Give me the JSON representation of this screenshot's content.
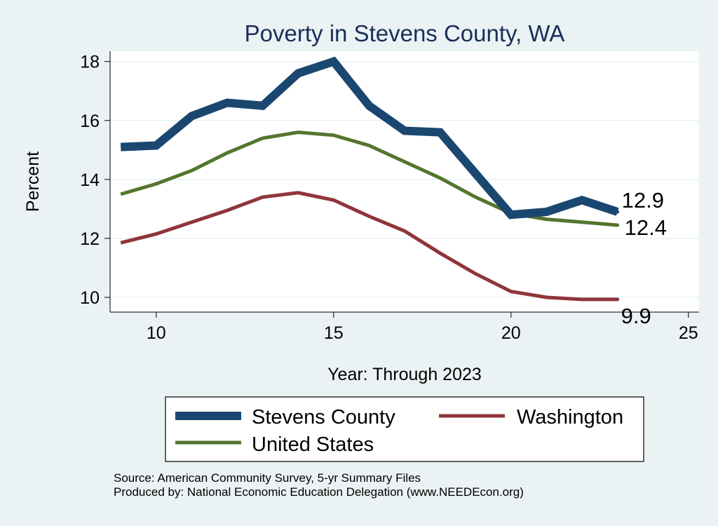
{
  "chart_data": {
    "type": "line",
    "title": "Poverty in Stevens County, WA",
    "xlabel": "Year: Through 2023",
    "ylabel": "Percent",
    "xlim": [
      8.7,
      25.3
    ],
    "ylim": [
      9.5,
      18.35
    ],
    "xticks": [
      10,
      15,
      20,
      25
    ],
    "yticks": [
      10,
      12,
      14,
      16,
      18
    ],
    "grid": true,
    "legend_position": "bottom",
    "x": [
      9,
      10,
      11,
      12,
      13,
      14,
      15,
      16,
      17,
      18,
      19,
      20,
      21,
      22,
      23
    ],
    "series": [
      {
        "name": "Stevens County",
        "color": "#1a476f",
        "values": [
          15.1,
          15.15,
          16.15,
          16.6,
          16.5,
          17.6,
          18.0,
          16.5,
          15.65,
          15.6,
          14.2,
          12.8,
          12.9,
          13.3,
          12.9
        ],
        "end_label": "12.9"
      },
      {
        "name": "United States",
        "color": "#55752f",
        "values": [
          13.5,
          13.85,
          14.3,
          14.9,
          15.4,
          15.6,
          15.5,
          15.15,
          14.6,
          14.05,
          13.4,
          12.85,
          12.65,
          12.55,
          12.45
        ],
        "end_label": "12.4"
      },
      {
        "name": "Washington",
        "color": "#90353b",
        "values": [
          11.85,
          12.15,
          12.55,
          12.95,
          13.4,
          13.55,
          13.3,
          12.75,
          12.25,
          11.5,
          10.8,
          10.2,
          10.0,
          9.93,
          9.93
        ],
        "end_label": "9.9"
      }
    ]
  },
  "footer": {
    "source": "Source: American Community Survey, 5-yr Summary Files",
    "produced": "Produced by: National Economic Education Delegation (www.NEEDEcon.org)"
  }
}
